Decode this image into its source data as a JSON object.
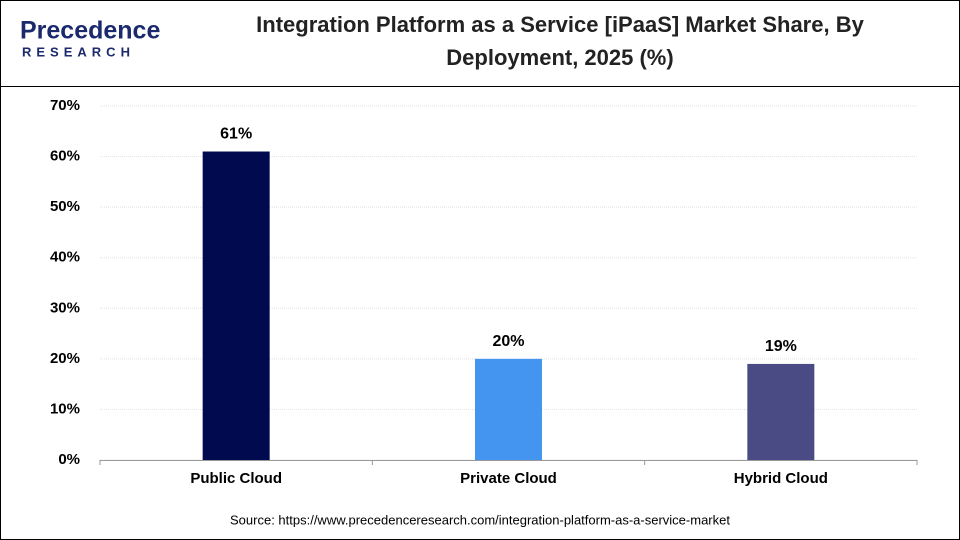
{
  "logo": {
    "name": "Precedence",
    "sub": "RESEARCH"
  },
  "chart_data": {
    "type": "bar",
    "title": "Integration Platform as a Service [iPaaS] Market Share, By Deployment, 2025 (%)",
    "categories": [
      "Public Cloud",
      "Private Cloud",
      "Hybrid Cloud"
    ],
    "values": [
      61,
      20,
      19
    ],
    "value_labels": [
      "61%",
      "20%",
      "19%"
    ],
    "colors": [
      "#020a4f",
      "#4495f0",
      "#4a4a85"
    ],
    "ylim": [
      0,
      70
    ],
    "yticks": [
      {
        "value": 0,
        "label": "0%"
      },
      {
        "value": 10,
        "label": "10%"
      },
      {
        "value": 20,
        "label": "20%"
      },
      {
        "value": 30,
        "label": "30%"
      },
      {
        "value": 40,
        "label": "40%"
      },
      {
        "value": 50,
        "label": "50%"
      },
      {
        "value": 60,
        "label": "60%"
      },
      {
        "value": 70,
        "label": "70%"
      }
    ],
    "grid": true,
    "source": "Source: https://www.precedenceresearch.com/integration-platform-as-a-service-market"
  }
}
